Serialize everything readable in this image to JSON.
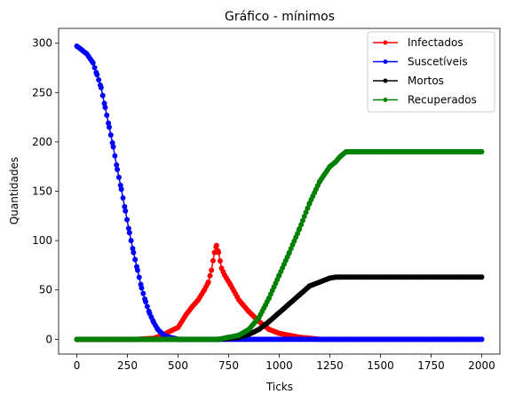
{
  "chart_data": {
    "type": "line",
    "title": "Gráfico - mínimos",
    "xlabel": "Ticks",
    "ylabel": "Quantidades",
    "xlim": [
      -90,
      2090
    ],
    "ylim": [
      -15,
      315
    ],
    "xticks": [
      0,
      250,
      500,
      750,
      1000,
      1250,
      1500,
      1750,
      2000
    ],
    "yticks": [
      0,
      50,
      100,
      150,
      200,
      250,
      300
    ],
    "legend_position": "top-right",
    "grid": false,
    "series": [
      {
        "name": "Infectados",
        "color": "#ff0000",
        "x": [
          0,
          300,
          380,
          420,
          460,
          500,
          540,
          570,
          600,
          630,
          650,
          665,
          680,
          690,
          700,
          715,
          730,
          760,
          800,
          850,
          900,
          950,
          1000,
          1050,
          1100,
          1150,
          1200,
          2000
        ],
        "y": [
          0,
          0,
          1,
          4,
          8,
          12,
          25,
          33,
          40,
          50,
          58,
          70,
          88,
          95,
          88,
          72,
          65,
          55,
          40,
          28,
          18,
          10,
          6,
          4,
          2,
          1,
          0,
          0
        ]
      },
      {
        "name": "Suscetíveis",
        "color": "#0000ff",
        "x": [
          0,
          20,
          50,
          80,
          100,
          120,
          140,
          160,
          180,
          200,
          220,
          240,
          260,
          280,
          300,
          320,
          340,
          360,
          380,
          400,
          420,
          440,
          460,
          480,
          500,
          520,
          560,
          600,
          2000
        ],
        "y": [
          297,
          294,
          289,
          280,
          268,
          255,
          235,
          215,
          195,
          172,
          152,
          130,
          108,
          88,
          70,
          52,
          38,
          26,
          17,
          10,
          6,
          3,
          2,
          1,
          0,
          0,
          0,
          0,
          0
        ]
      },
      {
        "name": "Mortos",
        "color": "#000000",
        "x": [
          0,
          700,
          750,
          800,
          850,
          900,
          950,
          1000,
          1050,
          1100,
          1150,
          1200,
          1250,
          1280,
          1300,
          2000
        ],
        "y": [
          0,
          0,
          1,
          2,
          5,
          10,
          18,
          27,
          36,
          45,
          54,
          58,
          62,
          63,
          63,
          63
        ]
      },
      {
        "name": "Recuperados",
        "color": "#008000",
        "x": [
          0,
          700,
          750,
          800,
          850,
          900,
          950,
          1000,
          1050,
          1100,
          1150,
          1200,
          1250,
          1280,
          1300,
          1330,
          1350,
          2000
        ],
        "y": [
          0,
          0,
          2,
          4,
          10,
          22,
          42,
          65,
          88,
          112,
          138,
          160,
          175,
          180,
          185,
          190,
          190,
          190
        ]
      }
    ]
  }
}
